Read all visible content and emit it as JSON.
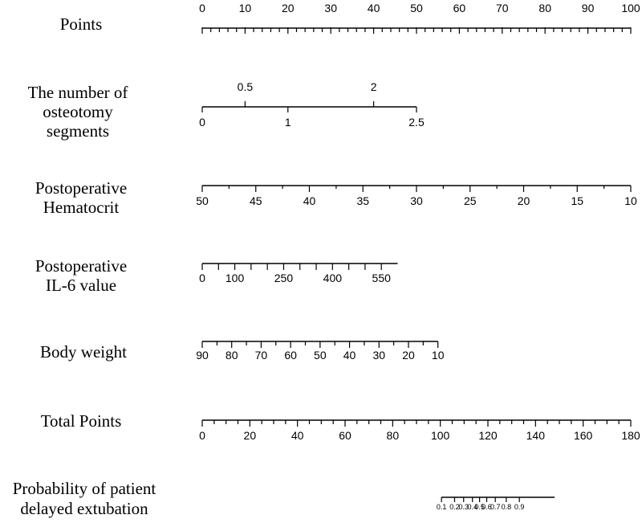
{
  "chart_data": {
    "type": "nomogram",
    "rows": [
      {
        "id": "points",
        "label": [
          "Points"
        ],
        "min": 0,
        "max": 100,
        "major_ticks": [
          0,
          10,
          20,
          30,
          40,
          50,
          60,
          70,
          80,
          90,
          100
        ],
        "major_labels": [
          "0",
          "10",
          "20",
          "30",
          "40",
          "50",
          "60",
          "70",
          "80",
          "90",
          "100"
        ],
        "minor_step": 2,
        "labels_above": true
      },
      {
        "id": "osteotomy",
        "label": [
          "The number of",
          "osteotomy",
          "segments"
        ],
        "ticks": [
          {
            "value": 0,
            "text": "0",
            "pos": "below"
          },
          {
            "value": 0.5,
            "text": "0.5",
            "pos": "above"
          },
          {
            "value": 1,
            "text": "1",
            "pos": "below"
          },
          {
            "value": 2,
            "text": "2",
            "pos": "above"
          },
          {
            "value": 2.5,
            "text": "2.5",
            "pos": "below"
          }
        ],
        "points_at_min": 0,
        "points_at_max": 50,
        "min": 0,
        "max": 2.5
      },
      {
        "id": "hematocrit",
        "label": [
          "Postoperative",
          "Hematocrit"
        ],
        "ticks_values": [
          50,
          45,
          40,
          35,
          30,
          25,
          20,
          15,
          10
        ],
        "ticks_labels": [
          "50",
          "45",
          "40",
          "35",
          "30",
          "25",
          "20",
          "15",
          "10"
        ],
        "minor_values": [
          47.5,
          42.5,
          37.5,
          32.5,
          27.5,
          22.5,
          17.5,
          12.5
        ],
        "value_at_0_points": 50,
        "value_at_100_points": 10
      },
      {
        "id": "il6",
        "label": [
          "Postoperative",
          "IL-6 value"
        ],
        "ticks_values": [
          0,
          100,
          250,
          400,
          550
        ],
        "ticks_labels": [
          "0",
          "100",
          "250",
          "400",
          "550"
        ],
        "minor_values": [
          50,
          150,
          200,
          300,
          350,
          450,
          500
        ],
        "points_per_unit": 0.076,
        "max_value": 600
      },
      {
        "id": "weight",
        "label": [
          "Body weight"
        ],
        "ticks_values": [
          90,
          80,
          70,
          60,
          50,
          40,
          30,
          20,
          10
        ],
        "ticks_labels": [
          "90",
          "80",
          "70",
          "60",
          "50",
          "40",
          "30",
          "20",
          "10"
        ],
        "minor_values": [
          85,
          75,
          65,
          55,
          45,
          35,
          25,
          15
        ],
        "value_at_0_points": 90,
        "points_at_10": 55
      },
      {
        "id": "total",
        "label": [
          "Total Points"
        ],
        "min": 0,
        "max": 180,
        "major_ticks": [
          0,
          20,
          40,
          60,
          80,
          100,
          120,
          140,
          160,
          180
        ],
        "major_labels": [
          "0",
          "20",
          "40",
          "60",
          "80",
          "100",
          "120",
          "140",
          "160",
          "180"
        ],
        "minor_step": 5
      },
      {
        "id": "probability",
        "label": [
          "Probability of patient",
          "delayed extubation"
        ],
        "ticks": [
          {
            "p": 0.1,
            "text": "0.1",
            "total": 100.5
          },
          {
            "p": 0.2,
            "text": "0.2",
            "total": 106
          },
          {
            "p": 0.3,
            "text": "0.3",
            "total": 109.8
          },
          {
            "p": 0.4,
            "text": "0.4",
            "total": 113.5
          },
          {
            "p": 0.5,
            "text": "0.5",
            "total": 116.5
          },
          {
            "p": 0.6,
            "text": "0.6",
            "total": 119.5
          },
          {
            "p": 0.7,
            "text": "0.7",
            "total": 123.1
          },
          {
            "p": 0.8,
            "text": "0.8",
            "total": 127.7
          },
          {
            "p": 0.9,
            "text": "0.9",
            "total": 133.2
          }
        ],
        "line_start_total": 100.5,
        "line_end_total": 148
      }
    ]
  }
}
